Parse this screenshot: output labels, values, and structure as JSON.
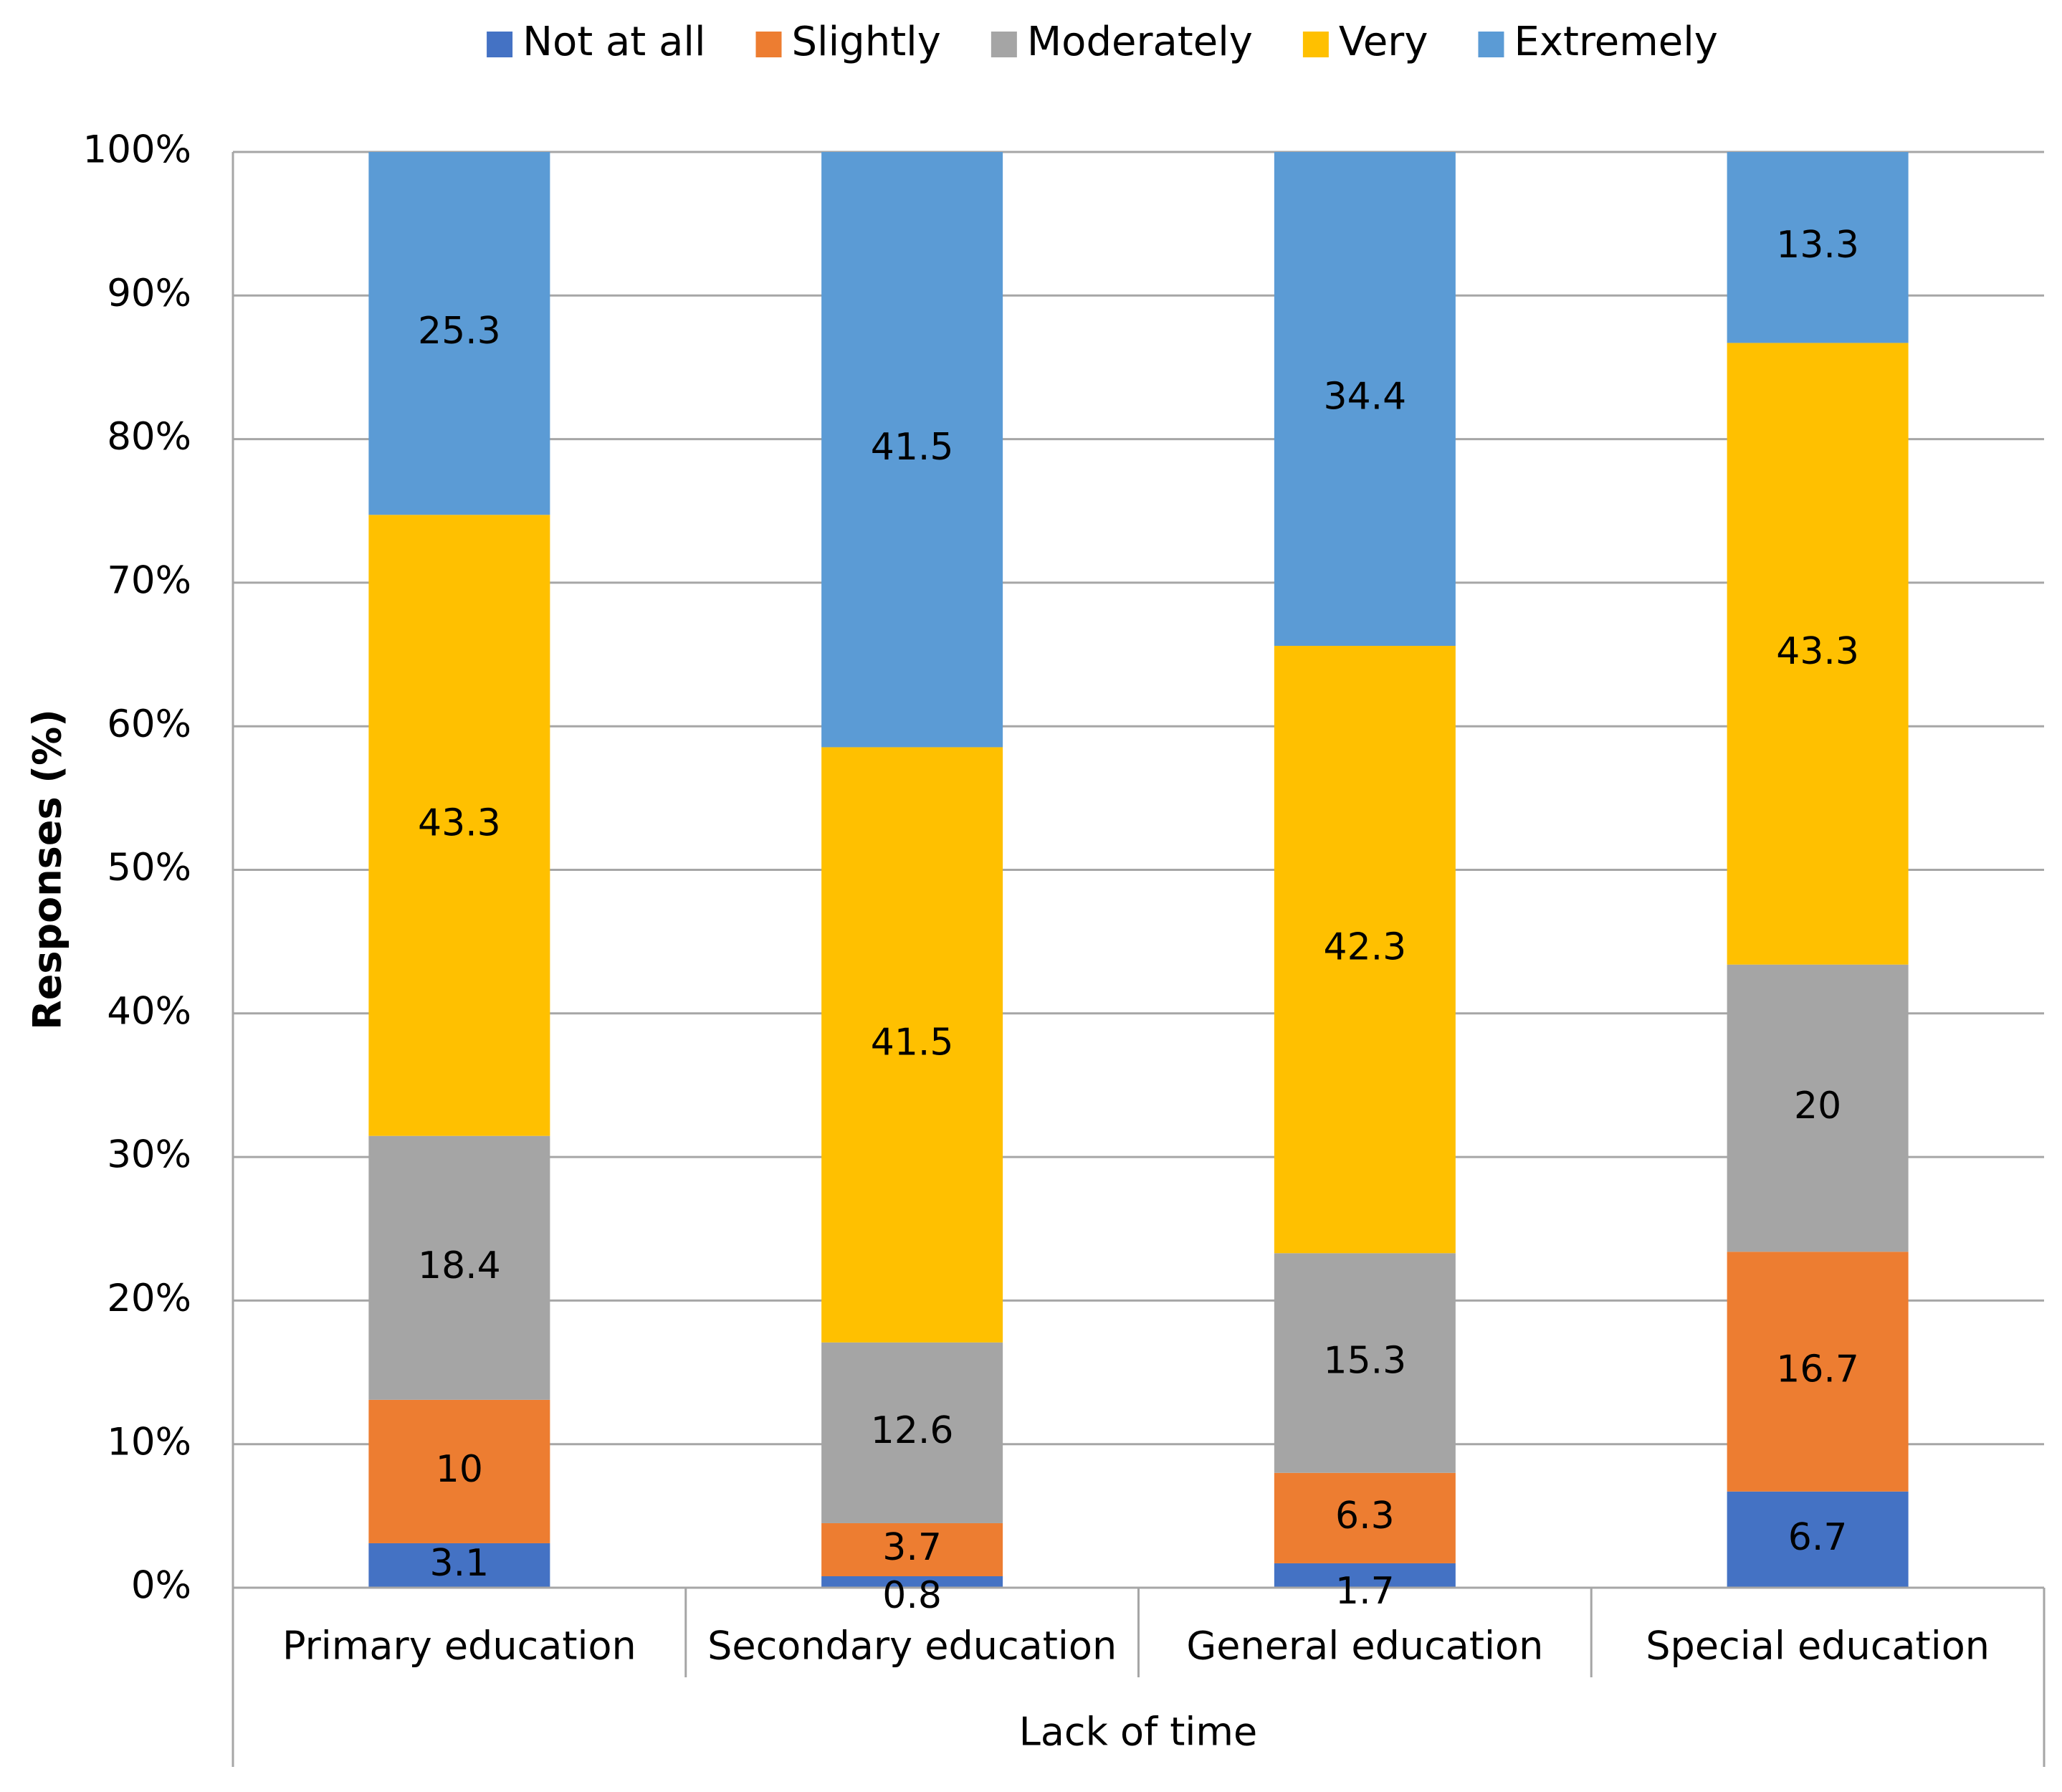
{
  "chart_data": {
    "type": "bar",
    "stacked": true,
    "percent_stacked": true,
    "categories": [
      "Primary education",
      "Secondary education",
      "General education",
      "Special education"
    ],
    "group_label": "Lack of time",
    "ylabel": "Responses (%)",
    "ylim": [
      0,
      100
    ],
    "yticks": [
      0,
      10,
      20,
      30,
      40,
      50,
      60,
      70,
      80,
      90,
      100
    ],
    "ytick_labels": [
      "0%",
      "10%",
      "20%",
      "30%",
      "40%",
      "50%",
      "60%",
      "70%",
      "80%",
      "90%",
      "100%"
    ],
    "grid": true,
    "legend_position": "top-center",
    "series": [
      {
        "name": "Not at all",
        "color": "#4472c4",
        "values": [
          3.1,
          0.8,
          1.7,
          6.7
        ],
        "labels": [
          "3.1",
          "0.8",
          "1.7",
          "6.7"
        ]
      },
      {
        "name": "Slightly",
        "color": "#ed7d31",
        "values": [
          10,
          3.7,
          6.3,
          16.7
        ],
        "labels": [
          "10",
          "3.7",
          "6.3",
          "16.7"
        ]
      },
      {
        "name": "Moderately",
        "color": "#a5a5a5",
        "values": [
          18.4,
          12.6,
          15.3,
          20
        ],
        "labels": [
          "18.4",
          "12.6",
          "15.3",
          "20"
        ]
      },
      {
        "name": "Very",
        "color": "#ffc000",
        "values": [
          43.3,
          41.5,
          42.3,
          43.3
        ],
        "labels": [
          "43.3",
          "41.5",
          "42.3",
          "43.3"
        ]
      },
      {
        "name": "Extremely",
        "color": "#5b9bd5",
        "values": [
          25.3,
          41.5,
          34.4,
          13.3
        ],
        "labels": [
          "25.3",
          "41.5",
          "34.4",
          "13.3"
        ]
      }
    ]
  }
}
